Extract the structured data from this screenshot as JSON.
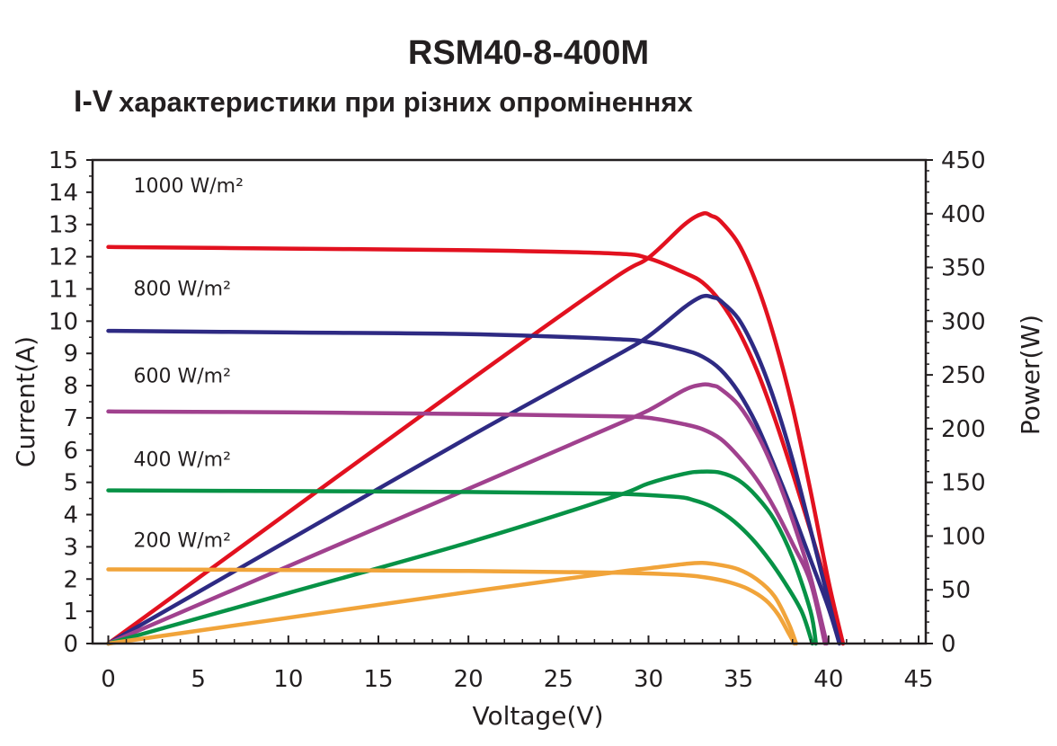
{
  "chart_data": {
    "type": "line",
    "title": "RSM40-8-400M",
    "subtitle_prefix": "I-V",
    "subtitle_rest": "характеристики при різних опроміненнях",
    "xlabel": "Voltage(V)",
    "ylabel": "Current(A)",
    "y2label": "Power(W)",
    "xlim": [
      0,
      45
    ],
    "ylim": [
      0,
      15
    ],
    "y2lim": [
      0,
      450
    ],
    "xticks": [
      0,
      5,
      10,
      15,
      20,
      25,
      30,
      35,
      40,
      45
    ],
    "yticks": [
      0,
      1,
      2,
      3,
      4,
      5,
      6,
      7,
      8,
      9,
      10,
      11,
      12,
      13,
      14,
      15
    ],
    "y2ticks": [
      0,
      50,
      100,
      150,
      200,
      250,
      300,
      350,
      400,
      450
    ],
    "grid": false,
    "series": [
      {
        "name": "1000 W/m²",
        "color": "#e2111f",
        "iv": [
          [
            0,
            12.3
          ],
          [
            10,
            12.25
          ],
          [
            20,
            12.2
          ],
          [
            28,
            12.1
          ],
          [
            30,
            11.95
          ],
          [
            32,
            11.5
          ],
          [
            33,
            11.2
          ],
          [
            34,
            10.6
          ],
          [
            35,
            9.7
          ],
          [
            36,
            8.5
          ],
          [
            37,
            7.0
          ],
          [
            38,
            5.3
          ],
          [
            39,
            3.5
          ],
          [
            40,
            1.6
          ],
          [
            40.8,
            0
          ]
        ],
        "pv": [
          [
            0,
            0
          ],
          [
            10,
            122
          ],
          [
            20,
            244
          ],
          [
            28,
            339
          ],
          [
            30,
            359
          ],
          [
            32,
            390
          ],
          [
            33,
            400
          ],
          [
            33.5,
            398
          ],
          [
            34,
            393
          ],
          [
            35,
            372
          ],
          [
            36,
            335
          ],
          [
            37,
            284
          ],
          [
            38,
            220
          ],
          [
            39,
            142
          ],
          [
            40,
            58
          ],
          [
            40.8,
            0
          ]
        ]
      },
      {
        "name": "800 W/m²",
        "color": "#2e2a83",
        "iv": [
          [
            0,
            9.7
          ],
          [
            10,
            9.65
          ],
          [
            20,
            9.6
          ],
          [
            28,
            9.45
          ],
          [
            30,
            9.35
          ],
          [
            32,
            9.1
          ],
          [
            33,
            8.9
          ],
          [
            34,
            8.5
          ],
          [
            35,
            7.8
          ],
          [
            36,
            6.8
          ],
          [
            37,
            5.5
          ],
          [
            38,
            4.1
          ],
          [
            39,
            2.6
          ],
          [
            40,
            1.1
          ],
          [
            40.6,
            0
          ]
        ],
        "pv": [
          [
            0,
            0
          ],
          [
            10,
            96
          ],
          [
            20,
            192
          ],
          [
            28,
            266
          ],
          [
            30,
            286
          ],
          [
            32,
            313
          ],
          [
            33,
            323
          ],
          [
            33.6,
            322
          ],
          [
            34,
            319
          ],
          [
            35,
            302
          ],
          [
            36,
            270
          ],
          [
            37,
            226
          ],
          [
            38,
            171
          ],
          [
            39,
            106
          ],
          [
            40,
            40
          ],
          [
            40.6,
            0
          ]
        ]
      },
      {
        "name": "600 W/m²",
        "color": "#a0418e",
        "iv": [
          [
            0,
            7.2
          ],
          [
            10,
            7.17
          ],
          [
            20,
            7.12
          ],
          [
            28,
            7.05
          ],
          [
            30,
            7.0
          ],
          [
            32,
            6.8
          ],
          [
            33,
            6.65
          ],
          [
            34,
            6.35
          ],
          [
            35,
            5.8
          ],
          [
            36,
            5.1
          ],
          [
            37,
            4.2
          ],
          [
            38,
            3.1
          ],
          [
            39,
            1.9
          ],
          [
            39.8,
            0
          ]
        ],
        "pv": [
          [
            0,
            0
          ],
          [
            10,
            72
          ],
          [
            20,
            144
          ],
          [
            28,
            202
          ],
          [
            30,
            217
          ],
          [
            32,
            236
          ],
          [
            33,
            241
          ],
          [
            33.6,
            240
          ],
          [
            34,
            237
          ],
          [
            35,
            222
          ],
          [
            36,
            196
          ],
          [
            37,
            160
          ],
          [
            38,
            115
          ],
          [
            39,
            62
          ],
          [
            39.9,
            0
          ]
        ]
      },
      {
        "name": "400 W/m²",
        "color": "#079246",
        "iv": [
          [
            0,
            4.75
          ],
          [
            10,
            4.73
          ],
          [
            20,
            4.7
          ],
          [
            28,
            4.65
          ],
          [
            31.5,
            4.55
          ],
          [
            32.5,
            4.45
          ],
          [
            33.5,
            4.25
          ],
          [
            34.5,
            3.9
          ],
          [
            35.5,
            3.4
          ],
          [
            36.5,
            2.75
          ],
          [
            37.5,
            1.95
          ],
          [
            38.5,
            1.0
          ],
          [
            39.1,
            0
          ]
        ],
        "pv": [
          [
            0,
            0
          ],
          [
            10,
            47
          ],
          [
            20,
            94
          ],
          [
            28,
            136
          ],
          [
            30,
            149
          ],
          [
            32,
            158
          ],
          [
            33,
            160
          ],
          [
            34,
            159
          ],
          [
            35,
            152
          ],
          [
            36,
            137
          ],
          [
            37,
            115
          ],
          [
            38,
            80
          ],
          [
            39,
            30
          ],
          [
            39.3,
            0
          ]
        ]
      },
      {
        "name": "200 W/m²",
        "color": "#f1a43a",
        "iv": [
          [
            0,
            2.3
          ],
          [
            10,
            2.28
          ],
          [
            20,
            2.25
          ],
          [
            28,
            2.2
          ],
          [
            31,
            2.15
          ],
          [
            32.5,
            2.1
          ],
          [
            33.5,
            2.02
          ],
          [
            34.5,
            1.9
          ],
          [
            35.5,
            1.7
          ],
          [
            36.5,
            1.35
          ],
          [
            37.2,
            0.9
          ],
          [
            37.8,
            0.3
          ],
          [
            38.1,
            0
          ]
        ],
        "pv": [
          [
            0,
            0
          ],
          [
            10,
            24
          ],
          [
            20,
            48
          ],
          [
            28,
            66
          ],
          [
            30,
            70
          ],
          [
            32,
            74
          ],
          [
            33,
            75
          ],
          [
            34,
            73
          ],
          [
            35,
            69
          ],
          [
            36,
            60
          ],
          [
            37,
            44
          ],
          [
            37.8,
            18
          ],
          [
            38.2,
            0
          ]
        ]
      }
    ],
    "labels": [
      {
        "text": "1000 W/m²",
        "x": 1.4,
        "y": 14.0
      },
      {
        "text": "800 W/m²",
        "x": 1.4,
        "y": 10.8
      },
      {
        "text": "600 W/m²",
        "x": 1.4,
        "y": 8.1
      },
      {
        "text": "400 W/m²",
        "x": 1.4,
        "y": 5.5
      },
      {
        "text": "200 W/m²",
        "x": 1.4,
        "y": 3.0
      }
    ]
  }
}
